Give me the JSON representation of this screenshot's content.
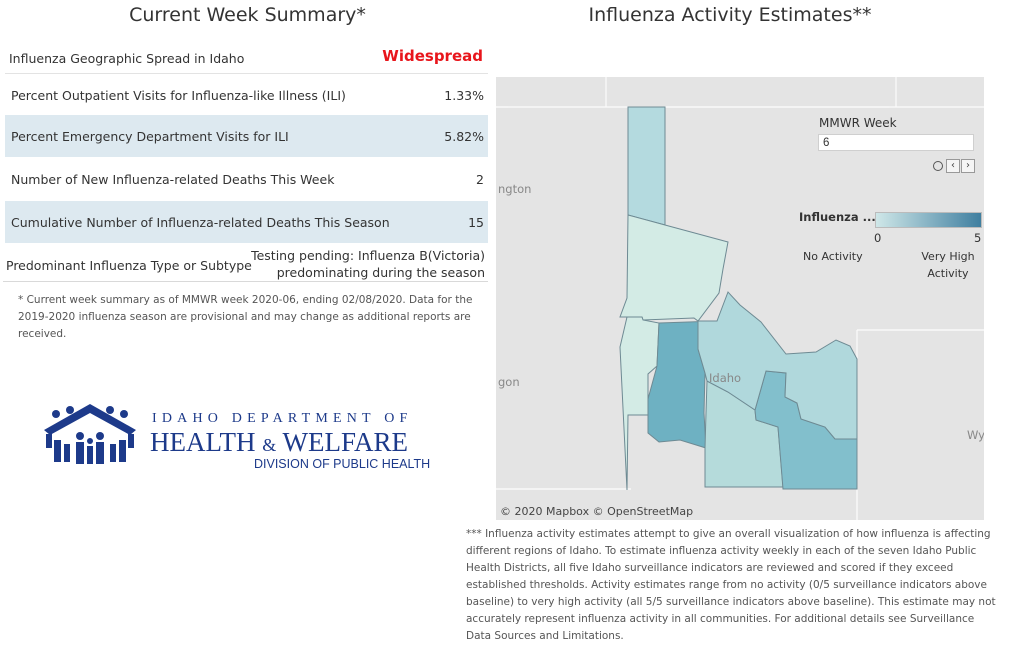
{
  "summary": {
    "title": "Current Week Summary*",
    "rows": [
      {
        "label": "Influenza Geographic Spread in Idaho",
        "value": "Widespread"
      },
      {
        "label": "Percent Outpatient Visits for Influenza-like Illness (ILI)",
        "value": "1.33%"
      },
      {
        "label": "Percent Emergency Department Visits for ILI",
        "value": "5.82%"
      },
      {
        "label": "Number of New Influenza-related Deaths This Week",
        "value": "2"
      },
      {
        "label": "Cumulative Number of Influenza-related Deaths This Season",
        "value": "15"
      },
      {
        "label": "Predominant Influenza Type or Subtype",
        "value_line1": "Testing pending: Influenza B(Victoria)",
        "value_line2": "predominating during the season"
      }
    ],
    "footnote": "* Current week summary as of MMWR week 2020-06, ending 02/08/2020. Data for the 2019-2020 influenza season are provisional and may change as additional reports are received."
  },
  "logo": {
    "line1": "IDAHO DEPARTMENT OF",
    "line2_a": "HEALTH",
    "line2_amp": "&",
    "line2_b": "WELFARE",
    "line3": "DIVISION OF PUBLIC HEALTH",
    "color": "#1d3a8a"
  },
  "map": {
    "title": "Influenza Activity Estimates**",
    "mmwr_label": "MMWR Week",
    "mmwr_value": "6",
    "legend_title": "Influenza ...",
    "legend_min": "0",
    "legend_max": "5",
    "legend_low_label": "No Activity",
    "legend_high_label": "Very High Activity",
    "place_labels": [
      "ngton",
      "gon",
      "Idaho",
      "Wy"
    ],
    "attribution": "© 2020 Mapbox © OpenStreetMap",
    "colors": {
      "low": "#cfe7e8",
      "high": "#3f7fa0"
    }
  },
  "footnote2": "*** Influenza activity estimates attempt to give an overall visualization of how influenza is affecting different regions of Idaho. To estimate influenza activity weekly in each of the seven Idaho Public Health Districts, all five Idaho surveillance indicators are reviewed and scored if they exceed established thresholds. Activity estimates range from no activity (0/5 surveillance indicators above baseline) to very high activity (all 5/5 surveillance indicators above baseline). This estimate may not accurately represent influenza activity in all communities. For additional details see Surveillance Data Sources and Limitations."
}
